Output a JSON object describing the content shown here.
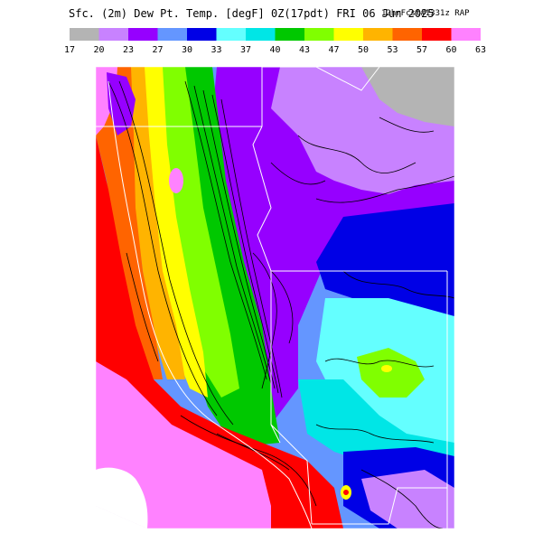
{
  "title": {
    "main": "Sfc. (2m) Dew Pt. Temp. [degF] 0Z(17pdt) FRI 06 Jun 2025",
    "model": "12hrFcst#1331z RAP"
  },
  "legend": {
    "ticks": [
      "17",
      "20",
      "23",
      "27",
      "30",
      "33",
      "37",
      "40",
      "43",
      "47",
      "50",
      "53",
      "57",
      "60",
      "63"
    ],
    "colors": [
      "#b4b4b4",
      "#c882ff",
      "#9600ff",
      "#6496ff",
      "#0000e6",
      "#64ffff",
      "#00e6e6",
      "#00c800",
      "#80ff00",
      "#ffff00",
      "#ffb400",
      "#ff6400",
      "#ff0000",
      "#ff82ff"
    ]
  },
  "map": {
    "region": "Western United States",
    "shading_field": "2m dew point temperature (degF)"
  }
}
